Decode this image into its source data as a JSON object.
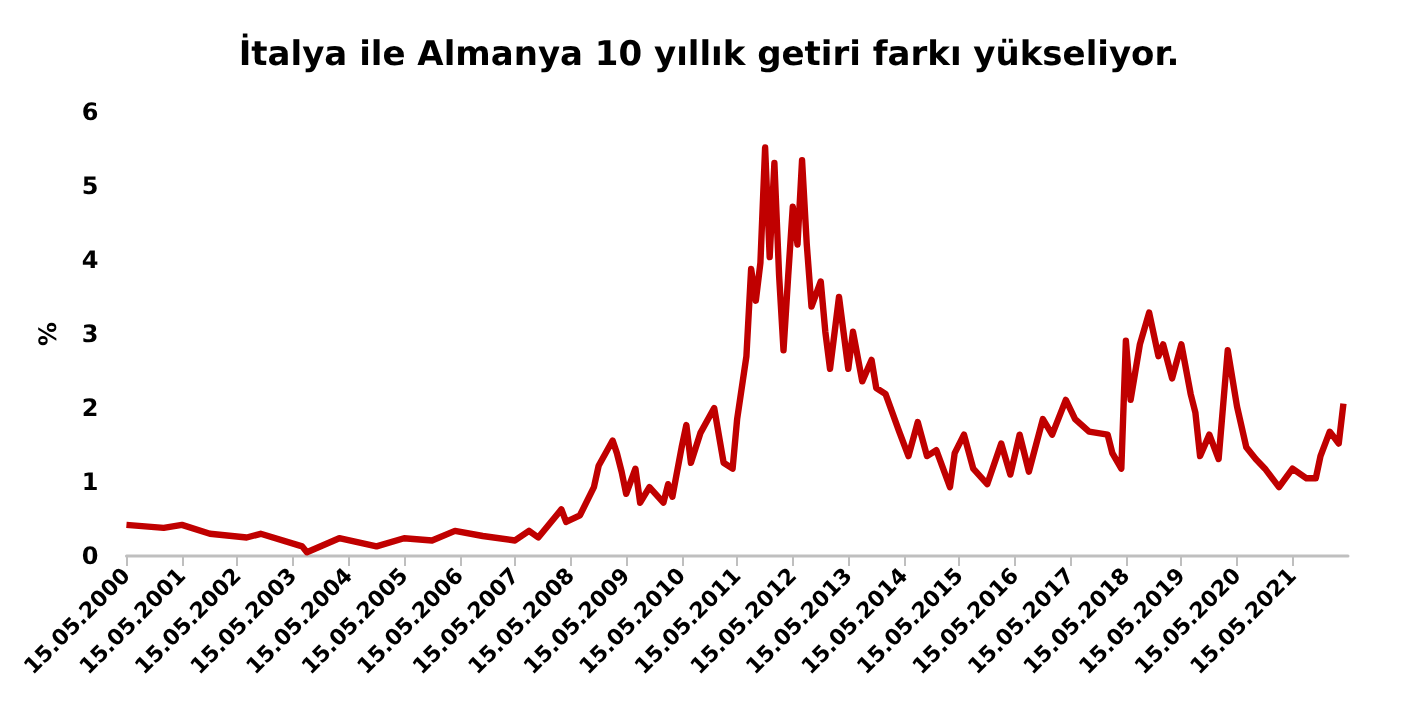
{
  "chart_data": {
    "type": "line",
    "title": "İtalya ile Almanya 10 yıllık getiri farkı yükseliyor.",
    "ylabel": "%",
    "x": [
      "2000-05-15",
      "2001-01",
      "2001-05",
      "2001-11",
      "2002-07",
      "2002-10",
      "2003-07",
      "2003-08",
      "2004-03",
      "2004-11",
      "2005-05",
      "2005-11",
      "2006-04",
      "2006-10",
      "2007-05",
      "2007-08",
      "2007-10",
      "2008-03",
      "2008-04",
      "2008-07",
      "2008-10",
      "2008-11",
      "2009-02",
      "2009-03",
      "2009-04",
      "2009-05",
      "2009-07",
      "2009-08",
      "2009-10",
      "2010-01",
      "2010-02",
      "2010-03",
      "2010-05",
      "2010-06",
      "2010-07",
      "2010-09",
      "2010-12",
      "2011-02",
      "2011-04",
      "2011-05",
      "2011-07",
      "2011-08",
      "2011-09",
      "2011-10",
      "2011-11",
      "2011-12",
      "2012-01",
      "2012-02",
      "2012-03",
      "2012-04",
      "2012-05",
      "2012-06",
      "2012-07",
      "2012-08",
      "2012-09",
      "2012-11",
      "2012-12",
      "2013-01",
      "2013-03",
      "2013-05",
      "2013-06",
      "2013-08",
      "2013-10",
      "2013-11",
      "2014-01",
      "2014-04",
      "2014-06",
      "2014-08",
      "2014-10",
      "2014-12",
      "2015-03",
      "2015-04",
      "2015-06",
      "2015-08",
      "2015-11",
      "2016-02",
      "2016-04",
      "2016-06",
      "2016-08",
      "2016-11",
      "2017-01",
      "2017-04",
      "2017-06",
      "2017-09",
      "2018-01",
      "2018-02",
      "2018-04",
      "2018-05",
      "2018-06",
      "2018-08",
      "2018-10",
      "2018-12",
      "2019-01",
      "2019-03",
      "2019-05",
      "2019-07",
      "2019-08",
      "2019-09",
      "2019-11",
      "2020-01",
      "2020-03",
      "2020-05",
      "2020-07",
      "2020-09",
      "2020-11",
      "2021-02",
      "2021-05",
      "2021-08",
      "2021-10",
      "2021-11",
      "2022-01",
      "2022-03",
      "2022-04"
    ],
    "series": [
      {
        "color": "#c00000",
        "values": [
          0.42,
          0.38,
          0.42,
          0.3,
          0.25,
          0.3,
          0.13,
          0.05,
          0.24,
          0.13,
          0.24,
          0.21,
          0.34,
          0.27,
          0.21,
          0.34,
          0.25,
          0.63,
          0.46,
          0.55,
          0.93,
          1.22,
          1.56,
          1.39,
          1.14,
          0.84,
          1.18,
          0.72,
          0.93,
          0.72,
          0.97,
          0.8,
          1.47,
          1.77,
          1.26,
          1.66,
          2.0,
          1.26,
          1.18,
          1.85,
          2.7,
          3.88,
          3.45,
          3.96,
          5.52,
          4.04,
          5.31,
          3.79,
          2.78,
          3.79,
          4.72,
          4.21,
          5.35,
          4.21,
          3.37,
          3.71,
          3.03,
          2.53,
          3.5,
          2.53,
          3.03,
          2.36,
          2.65,
          2.27,
          2.19,
          1.68,
          1.35,
          1.81,
          1.35,
          1.43,
          0.93,
          1.39,
          1.64,
          1.18,
          0.97,
          1.52,
          1.1,
          1.64,
          1.14,
          1.85,
          1.64,
          2.11,
          1.85,
          1.68,
          1.64,
          1.39,
          1.18,
          2.91,
          2.11,
          2.86,
          3.29,
          2.7,
          2.86,
          2.4,
          2.86,
          2.19,
          1.94,
          1.35,
          1.64,
          1.31,
          2.78,
          2.02,
          1.47,
          1.31,
          1.18,
          0.93,
          1.18,
          1.05,
          1.05,
          1.35,
          1.68,
          1.52,
          2.06
        ]
      }
    ],
    "xlim": [
      "2000-05-15",
      "2022-05-15"
    ],
    "xticks": [
      {
        "value": "2000-05-15",
        "label": "15.05.2000"
      },
      {
        "value": "2001-05-15",
        "label": "15.05.2001"
      },
      {
        "value": "2002-05-15",
        "label": "15.05.2002"
      },
      {
        "value": "2003-05-15",
        "label": "15.05.2003"
      },
      {
        "value": "2004-05-15",
        "label": "15.05.2004"
      },
      {
        "value": "2005-05-15",
        "label": "15.05.2005"
      },
      {
        "value": "2006-05-15",
        "label": "15.05.2006"
      },
      {
        "value": "2007-05-15",
        "label": "15.05.2007"
      },
      {
        "value": "2008-05-15",
        "label": "15.05.2008"
      },
      {
        "value": "2009-05-15",
        "label": "15.05.2009"
      },
      {
        "value": "2010-05-15",
        "label": "15.05.2010"
      },
      {
        "value": "2011-05-15",
        "label": "15.05.2011"
      },
      {
        "value": "2012-05-15",
        "label": "15.05.2012"
      },
      {
        "value": "2013-05-15",
        "label": "15.05.2013"
      },
      {
        "value": "2014-05-15",
        "label": "15.05.2014"
      },
      {
        "value": "2015-05-15",
        "label": "15.05.2015"
      },
      {
        "value": "2016-05-15",
        "label": "15.05.2016"
      },
      {
        "value": "2017-05-15",
        "label": "15.05.2017"
      },
      {
        "value": "2018-05-15",
        "label": "15.05.2018"
      },
      {
        "value": "2019-05-15",
        "label": "15.05.2019"
      },
      {
        "value": "2020-05-15",
        "label": "15.05.2020"
      },
      {
        "value": "2021-05-15",
        "label": "15.05.2021"
      }
    ],
    "ylim": [
      0,
      6
    ],
    "yticks": [
      0,
      1,
      2,
      3,
      4,
      5,
      6
    ],
    "grid": false,
    "marker": "none",
    "line_style": "solid"
  }
}
